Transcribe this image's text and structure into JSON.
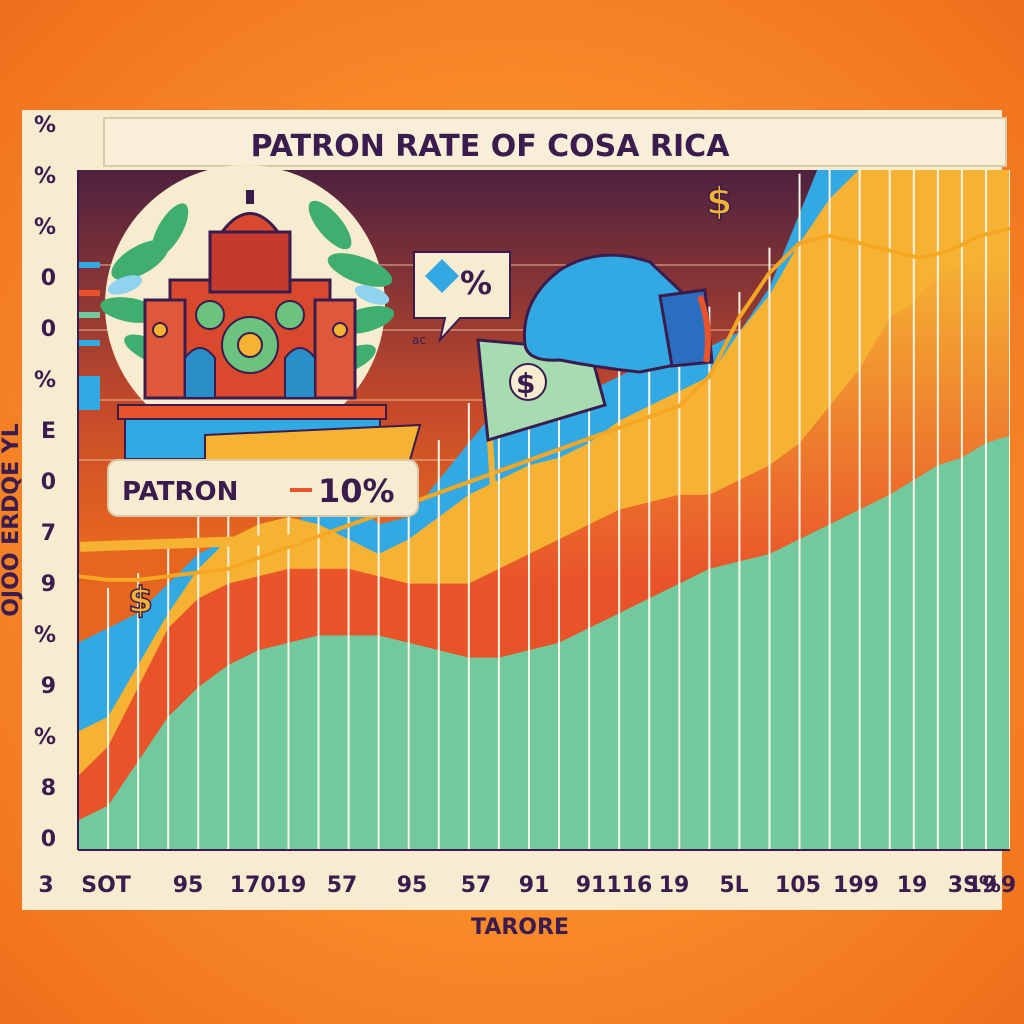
{
  "colors": {
    "page_background": "#f3811f",
    "panel_background": "#f8ecd0",
    "plot_background": "#e8661e",
    "plot_dark": "#4a1f3d",
    "title_text": "#3a1d4e",
    "teal_layer": "#72c99d",
    "red_layer": "#e8532a",
    "yellow_layer": "#f6b233",
    "blue_layer": "#33a9e4",
    "trend_line": "#f5a623",
    "gridline": "#fbf4e6"
  },
  "chart_data": {
    "type": "area",
    "title": "PATRON  RATE OF COSA RICA",
    "xlabel": "TARORE",
    "ylabel": "OJOO  ERDQE YL",
    "x_tick_labels": [
      "3",
      "SOT",
      "95",
      "17019",
      "57",
      "95",
      "57",
      "91",
      "91116",
      "19",
      "5L",
      "105",
      "199",
      "19",
      "3S%9",
      "19"
    ],
    "y_tick_labels": [
      "%",
      "%",
      "%",
      "0",
      "0",
      "%",
      "E",
      "0",
      "7",
      "9",
      "%",
      "9",
      "%",
      "8",
      "0"
    ],
    "x_index_range": [
      0,
      31
    ],
    "y_range": [
      0,
      100
    ],
    "annotation": {
      "label": "PATRON",
      "value": "10%"
    },
    "speech_bubble_text": "%",
    "stray_text": "ac",
    "dollar_marks": [
      "$",
      "$",
      "$"
    ],
    "x": [
      0,
      1,
      2,
      3,
      4,
      5,
      6,
      7,
      8,
      9,
      10,
      11,
      12,
      13,
      14,
      15,
      16,
      17,
      18,
      19,
      20,
      21,
      22,
      23,
      24,
      25,
      26,
      27,
      27.8,
      28.6,
      29.4,
      30.2,
      31
    ],
    "series": [
      {
        "values": [
          4,
          6,
          12,
          18,
          22,
          25,
          27,
          28,
          29,
          29,
          29,
          28,
          27,
          26,
          26,
          27,
          28,
          30,
          32,
          34,
          36,
          38,
          39,
          40,
          42,
          44,
          46,
          48,
          50,
          52,
          53,
          55,
          56
        ]
      },
      {
        "values": [
          10,
          14,
          22,
          30,
          34,
          36,
          37,
          38,
          38,
          38,
          37,
          36,
          36,
          36,
          38,
          40,
          42,
          44,
          46,
          47,
          48,
          48,
          50,
          52,
          55,
          60,
          65,
          72,
          74,
          78,
          79,
          80,
          80
        ]
      },
      {
        "values": [
          16,
          18,
          25,
          32,
          38,
          42,
          44,
          45,
          44,
          42,
          40,
          42,
          45,
          48,
          50,
          52,
          53,
          55,
          58,
          60,
          62,
          64,
          70,
          75,
          82,
          88,
          92,
          95,
          95,
          95,
          94,
          94,
          95
        ]
      },
      {
        "values": [
          28,
          30,
          32,
          36,
          40,
          42,
          42,
          44,
          46,
          48,
          44,
          45,
          50,
          55,
          60,
          62,
          60,
          62,
          64,
          66,
          66,
          68,
          70,
          76,
          86,
          96,
          100,
          96,
          94,
          94,
          98,
          96,
          96
        ]
      }
    ],
    "trend_line": {
      "x": [
        0,
        1,
        2,
        3,
        4,
        5,
        20,
        21,
        22,
        23,
        24,
        25,
        26,
        27,
        28,
        29,
        30,
        31
      ],
      "values": [
        37,
        36.5,
        36.5,
        37,
        37.5,
        38,
        60,
        64,
        72,
        78,
        82,
        83,
        82,
        81,
        80,
        81,
        83,
        84
      ]
    }
  }
}
